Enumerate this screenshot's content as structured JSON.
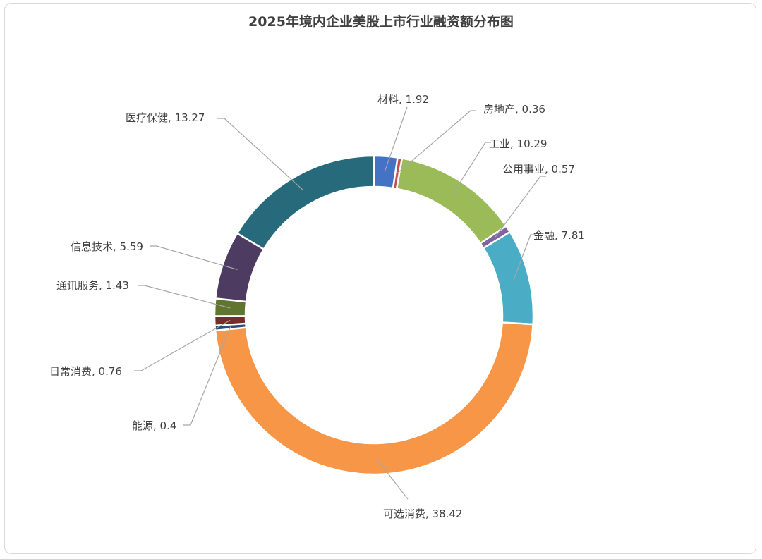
{
  "chart_data": {
    "type": "pie",
    "variant": "donut",
    "title": "2025年境内企业美股上市行业融资额分布图",
    "legend": "none",
    "slices": [
      {
        "label": "材料",
        "value": 1.92,
        "color": "#4472c4"
      },
      {
        "label": "房地产",
        "value": 0.36,
        "color": "#c0504d"
      },
      {
        "label": "工业",
        "value": 10.29,
        "color": "#9bbb59"
      },
      {
        "label": "公用事业",
        "value": 0.57,
        "color": "#8064a2"
      },
      {
        "label": "金融",
        "value": 7.81,
        "color": "#4bacc6"
      },
      {
        "label": "可选消费",
        "value": 38.42,
        "color": "#f79646"
      },
      {
        "label": "能源",
        "value": 0.4,
        "color": "#2c4d75"
      },
      {
        "label": "日常消费",
        "value": 0.76,
        "color": "#772c2a"
      },
      {
        "label": "通讯服务",
        "value": 1.43,
        "color": "#5f7530"
      },
      {
        "label": "信息技术",
        "value": 5.59,
        "color": "#4d3b62"
      },
      {
        "label": "医疗保健",
        "value": 13.27,
        "color": "#276a7c"
      }
    ],
    "data_labels": [
      "材料, 1.92",
      "房地产, 0.36",
      "工业, 10.29",
      "公用事业, 0.57",
      "金融, 7.81",
      "可选消费, 38.42",
      "能源, 0.4",
      "日常消费, 0.76",
      "通讯服务, 1.43",
      "信息技术, 5.59",
      "医疗保健, 13.27"
    ]
  }
}
